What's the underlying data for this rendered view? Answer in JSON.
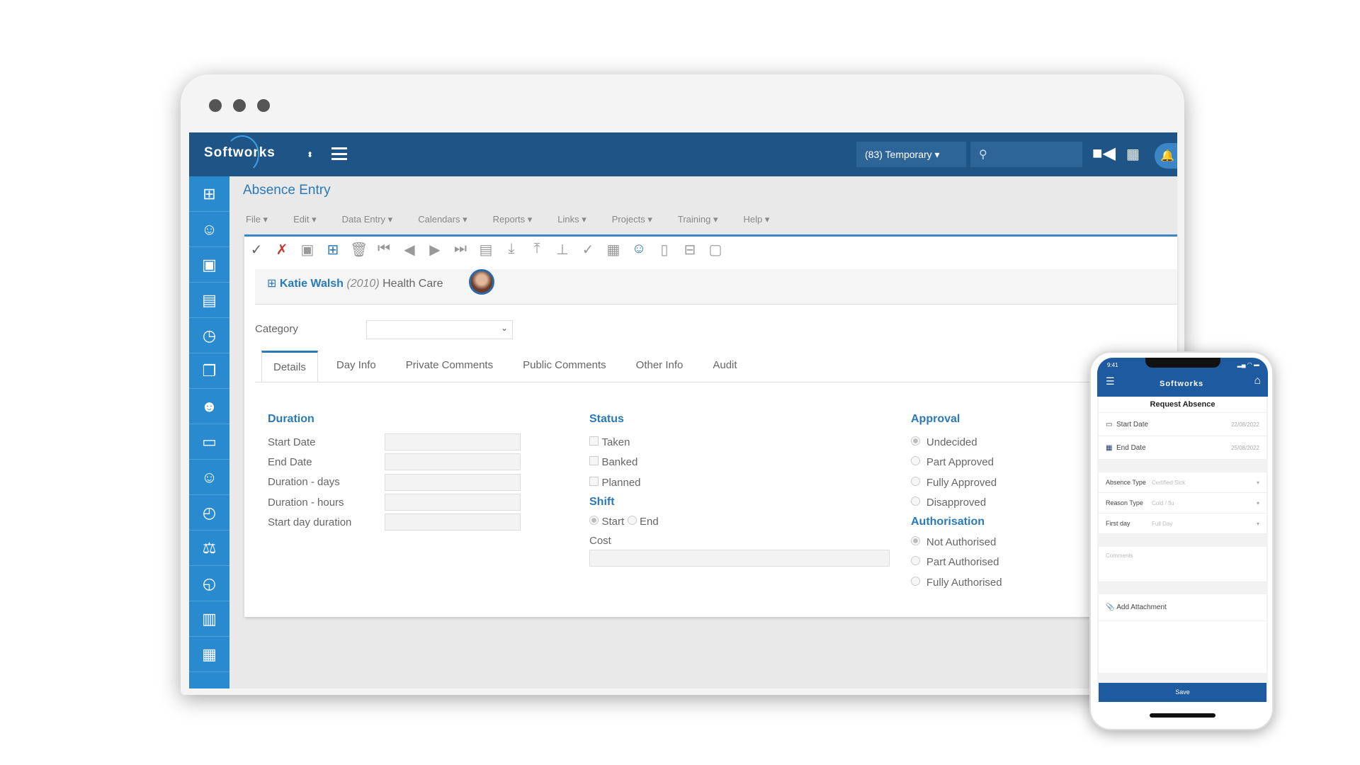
{
  "header": {
    "brand": "Softworks",
    "record_selector": "(83)  Temporary ▾",
    "user_search_icon": "user-icon"
  },
  "page_title": "Absence Entry",
  "menu": [
    "File ▾",
    "Edit ▾",
    "Data Entry ▾",
    "Calendars ▾",
    "Reports ▾",
    "Links ▾",
    "Projects ▾",
    "Training ▾",
    "Help ▾"
  ],
  "employee": {
    "name": "Katie Walsh",
    "id": "(2010)",
    "department": "Health Care"
  },
  "category": {
    "label": "Category",
    "value": ""
  },
  "tabs": [
    "Details",
    "Day Info",
    "Private Comments",
    "Public Comments",
    "Other Info",
    "Audit"
  ],
  "duration": {
    "heading": "Duration",
    "fields": [
      "Start Date",
      "End Date",
      "Duration - days",
      "Duration - hours",
      "Start day duration"
    ]
  },
  "status": {
    "heading": "Status",
    "options": [
      "Taken",
      "Banked",
      "Planned"
    ]
  },
  "shift": {
    "heading": "Shift",
    "options": [
      "Start",
      "End"
    ],
    "selected": "Start"
  },
  "cost": {
    "label": "Cost",
    "value": ""
  },
  "approval": {
    "heading": "Approval",
    "options": [
      "Undecided",
      "Part Approved",
      "Fully Approved",
      "Disapproved"
    ],
    "selected": "Undecided"
  },
  "authorisation": {
    "heading": "Authorisation",
    "options": [
      "Not Authorised",
      "Part Authorised",
      "Fully Authorised"
    ],
    "selected": "Not Authorised"
  },
  "phone": {
    "time": "9:41",
    "brand": "Softworks",
    "title": "Request Absence",
    "start_label": "Start Date",
    "start_value": "22/08/2022",
    "end_label": "End Date",
    "end_value": "25/08/2022",
    "absence_type_label": "Absence Type",
    "absence_type": "Certified Sick",
    "reason_label": "Reason Type",
    "reason": "Cold / flu",
    "first_day_label": "First day",
    "first_day": "Full Day",
    "comments_placeholder": "Comments",
    "attachment": "Add Attachment",
    "save": "Save"
  },
  "colors": {
    "primary": "#1e5486",
    "accent": "#2a7ab8",
    "sidebar": "#2a8ad0"
  }
}
